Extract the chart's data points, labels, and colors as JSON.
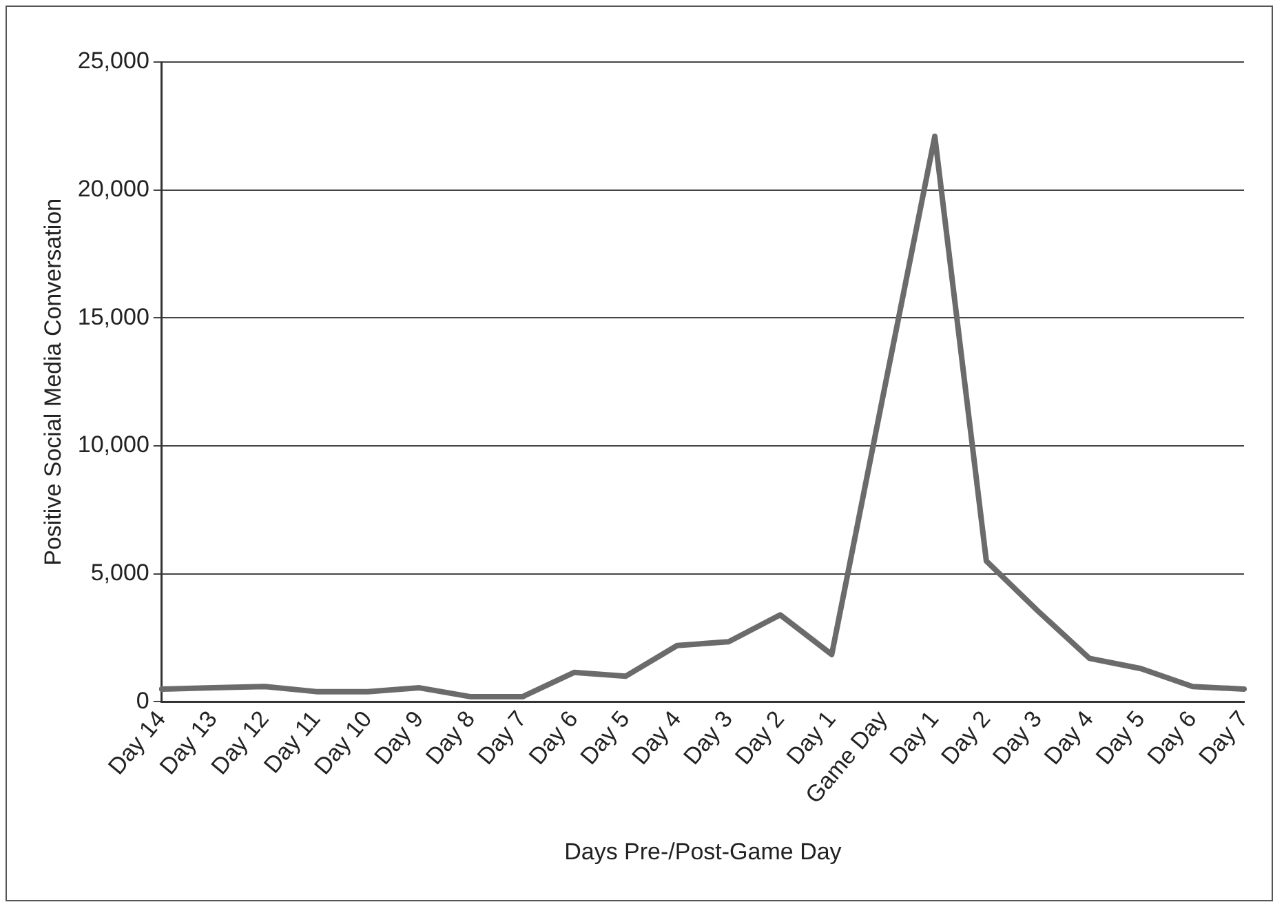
{
  "chart_data": {
    "type": "line",
    "xlabel": "Days Pre-/Post-Game Day",
    "ylabel": "Positive Social Media Conversation",
    "categories": [
      "Day 14",
      "Day 13",
      "Day 12",
      "Day 11",
      "Day 10",
      "Day 9",
      "Day 8",
      "Day 7",
      "Day 6",
      "Day 5",
      "Day 4",
      "Day 3",
      "Day 2",
      "Day 1",
      "Game Day",
      "Day 1",
      "Day 2",
      "Day 3",
      "Day 4",
      "Day 5",
      "Day 6",
      "Day 7"
    ],
    "series": [
      {
        "color": "#6b6b6b",
        "values": [
          500,
          550,
          600,
          400,
          400,
          550,
          200,
          200,
          1150,
          1000,
          2200,
          2350,
          3400,
          1850,
          12000,
          22100,
          5500,
          3550,
          1700,
          1300,
          600,
          500
        ]
      }
    ],
    "ylim": [
      0,
      25000
    ],
    "yticks": [
      {
        "value": 0,
        "label": "0"
      },
      {
        "value": 5000,
        "label": "5,000"
      },
      {
        "value": 10000,
        "label": "10,000"
      },
      {
        "value": 15000,
        "label": "15,000"
      },
      {
        "value": 20000,
        "label": "20,000"
      },
      {
        "value": 25000,
        "label": "25,000"
      }
    ],
    "grid": "y",
    "legend": false,
    "marker": "none",
    "line_style": "solid"
  }
}
